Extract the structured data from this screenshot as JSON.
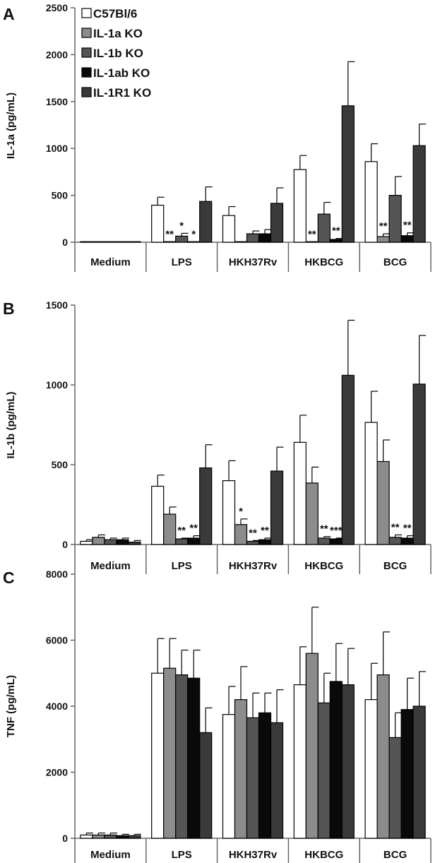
{
  "figure": {
    "colors": {
      "C57Bl/6": "#ffffff",
      "IL-1a KO": "#8c8c8c",
      "IL-1b KO": "#555555",
      "IL-1ab KO": "#0a0a0a",
      "IL-1R1 KO": "#3a3a3a"
    }
  },
  "chart_data": [
    {
      "type": "bar",
      "panel_label": "A",
      "ylabel": "IL-1a (pg/mL)",
      "ylim": [
        0,
        2500
      ],
      "yticks": [
        0,
        500,
        1000,
        1500,
        2000,
        2500
      ],
      "categories": [
        "Medium",
        "LPS",
        "HKH37Rv",
        "HKBCG",
        "BCG"
      ],
      "legend": [
        "C57Bl/6",
        "IL-1a KO",
        "IL-1b KO",
        "IL-1ab KO",
        "IL-1R1 KO"
      ],
      "series": [
        {
          "name": "C57Bl/6",
          "values": [
            2,
            395,
            285,
            775,
            860
          ],
          "errors": [
            0,
            85,
            95,
            150,
            190
          ]
        },
        {
          "name": "IL-1a KO",
          "values": [
            2,
            5,
            5,
            5,
            60
          ],
          "errors": [
            0,
            0,
            0,
            0,
            30
          ]
        },
        {
          "name": "IL-1b KO",
          "values": [
            2,
            65,
            90,
            300,
            500
          ],
          "errors": [
            0,
            30,
            30,
            125,
            200
          ]
        },
        {
          "name": "IL-1ab KO",
          "values": [
            2,
            5,
            90,
            30,
            70
          ],
          "errors": [
            0,
            0,
            45,
            10,
            30
          ]
        },
        {
          "name": "IL-1R1 KO",
          "values": [
            2,
            435,
            415,
            1455,
            1030
          ],
          "errors": [
            0,
            155,
            165,
            470,
            230
          ]
        }
      ],
      "annotations": [
        {
          "category": "LPS",
          "series": "IL-1a KO",
          "text": "**"
        },
        {
          "category": "LPS",
          "series": "IL-1b KO",
          "text": "*"
        },
        {
          "category": "LPS",
          "series": "IL-1ab KO",
          "text": "*"
        },
        {
          "category": "HKBCG",
          "series": "IL-1a KO",
          "text": "**"
        },
        {
          "category": "HKBCG",
          "series": "IL-1ab KO",
          "text": "**"
        },
        {
          "category": "BCG",
          "series": "IL-1a KO",
          "text": "**"
        },
        {
          "category": "BCG",
          "series": "IL-1ab KO",
          "text": "**"
        }
      ]
    },
    {
      "type": "bar",
      "panel_label": "B",
      "ylabel": "IL-1b (pg/mL)",
      "ylim": [
        0,
        1500
      ],
      "yticks": [
        0,
        500,
        1000,
        1500
      ],
      "categories": [
        "Medium",
        "LPS",
        "HKH37Rv",
        "HKBCG",
        "BCG"
      ],
      "series": [
        {
          "name": "C57Bl/6",
          "values": [
            20,
            365,
            400,
            640,
            765
          ],
          "errors": [
            10,
            70,
            125,
            170,
            195
          ]
        },
        {
          "name": "IL-1a KO",
          "values": [
            45,
            190,
            125,
            385,
            520
          ],
          "errors": [
            15,
            45,
            35,
            100,
            135
          ]
        },
        {
          "name": "IL-1b KO",
          "values": [
            30,
            35,
            20,
            40,
            45
          ],
          "errors": [
            10,
            5,
            5,
            10,
            15
          ]
        },
        {
          "name": "IL-1ab KO",
          "values": [
            30,
            40,
            30,
            35,
            40
          ],
          "errors": [
            10,
            15,
            10,
            5,
            15
          ]
        },
        {
          "name": "IL-1R1 KO",
          "values": [
            15,
            480,
            460,
            1060,
            1005
          ],
          "errors": [
            10,
            145,
            150,
            345,
            305
          ]
        }
      ],
      "annotations": [
        {
          "category": "LPS",
          "series": "IL-1b KO",
          "text": "**"
        },
        {
          "category": "LPS",
          "series": "IL-1ab KO",
          "text": "**"
        },
        {
          "category": "HKH37Rv",
          "series": "IL-1a KO",
          "text": "*"
        },
        {
          "category": "HKH37Rv",
          "series": "IL-1b KO",
          "text": "**"
        },
        {
          "category": "HKH37Rv",
          "series": "IL-1ab KO",
          "text": "**"
        },
        {
          "category": "HKBCG",
          "series": "IL-1b KO",
          "text": "**"
        },
        {
          "category": "HKBCG",
          "series": "IL-1ab KO",
          "text": "***"
        },
        {
          "category": "BCG",
          "series": "IL-1b KO",
          "text": "**"
        },
        {
          "category": "BCG",
          "series": "IL-1ab KO",
          "text": "**"
        }
      ]
    },
    {
      "type": "bar",
      "panel_label": "C",
      "ylabel": "TNF (pg/mL)",
      "ylim": [
        0,
        8000
      ],
      "yticks": [
        0,
        2000,
        4000,
        6000,
        8000
      ],
      "categories": [
        "Medium",
        "LPS",
        "HKH37Rv",
        "HKBCG",
        "BCG"
      ],
      "series": [
        {
          "name": "C57Bl/6",
          "values": [
            100,
            5000,
            3750,
            4650,
            4200
          ],
          "errors": [
            60,
            1050,
            850,
            1150,
            1100
          ]
        },
        {
          "name": "IL-1a KO",
          "values": [
            100,
            5150,
            4200,
            5600,
            4950
          ],
          "errors": [
            60,
            900,
            1000,
            1400,
            1300
          ]
        },
        {
          "name": "IL-1b KO",
          "values": [
            100,
            4950,
            3650,
            4100,
            3050
          ],
          "errors": [
            60,
            750,
            750,
            900,
            750
          ]
        },
        {
          "name": "IL-1ab KO",
          "values": [
            80,
            4850,
            3800,
            4750,
            3900
          ],
          "errors": [
            40,
            850,
            600,
            1150,
            950
          ]
        },
        {
          "name": "IL-1R1 KO",
          "values": [
            80,
            3200,
            3500,
            4650,
            4000
          ],
          "errors": [
            40,
            750,
            1000,
            1100,
            1050
          ]
        }
      ]
    }
  ]
}
